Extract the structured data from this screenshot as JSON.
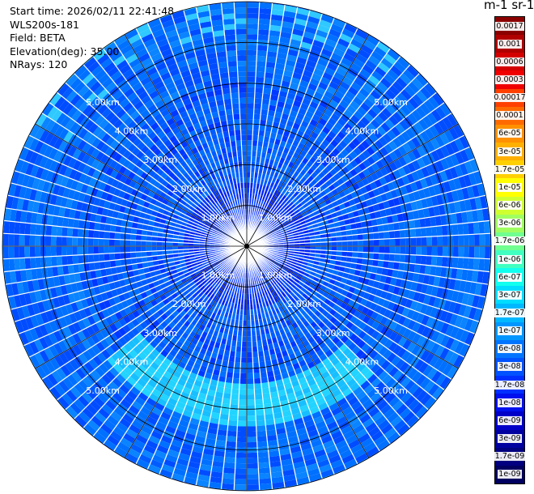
{
  "header": {
    "start_time": "Start time: 2026/02/11 22:41:48",
    "instrument": "WLS200s-181",
    "field": "Field: BETA",
    "elevation": "Elevation(deg): 35.00",
    "nrays": "NRays: 120"
  },
  "colorbar": {
    "unit_label": "m-1 sr-1",
    "ticks": [
      "0.0017",
      "0.001",
      "0.0006",
      "0.0003",
      "0.00017",
      "0.0001",
      "6e-05",
      "3e-05",
      "1.7e-05",
      "1e-05",
      "6e-06",
      "3e-06",
      "1.7e-06",
      "1e-06",
      "6e-07",
      "3e-07",
      "1.7e-07",
      "1e-07",
      "6e-08",
      "3e-08",
      "1.7e-08",
      "1e-08",
      "6e-09",
      "3e-09",
      "1.7e-09",
      "1e-09"
    ],
    "colors": [
      "#8b0000",
      "#b00000",
      "#d40000",
      "#f00000",
      "#ff4000",
      "#ff6a00",
      "#ff9000",
      "#ffb000",
      "#ffd000",
      "#ffff00",
      "#d0ff30",
      "#a0ff60",
      "#70ff90",
      "#40ffc0",
      "#10ffee",
      "#00ddff",
      "#00b8ff",
      "#0096ff",
      "#0074ff",
      "#0052ff",
      "#0030ff",
      "#0010ee",
      "#0000c8",
      "#0000a0",
      "#000080",
      "#000060"
    ]
  },
  "chart_data": {
    "type": "heatmap",
    "projection": "polar-ppi",
    "field": "BETA",
    "elevation_deg": 35.0,
    "nrays": 120,
    "range_rings_km": [
      1,
      2,
      3,
      4,
      5
    ],
    "range_labels": [
      "1.00km",
      "2.00km",
      "3.00km",
      "4.00km",
      "5.00km"
    ],
    "max_range_km": 6.0,
    "spokes_deg": [
      0,
      30,
      60,
      90,
      120,
      150,
      180,
      210,
      240,
      270,
      300,
      330
    ],
    "typical_values": {
      "inner_0_1_5km": "1e-08",
      "mid_1_5_4km": "3e-08",
      "enhanced_band_3_3_4_3km_SSE_to_SW": "1e-07",
      "outer_4_6km": "3e-08"
    }
  }
}
